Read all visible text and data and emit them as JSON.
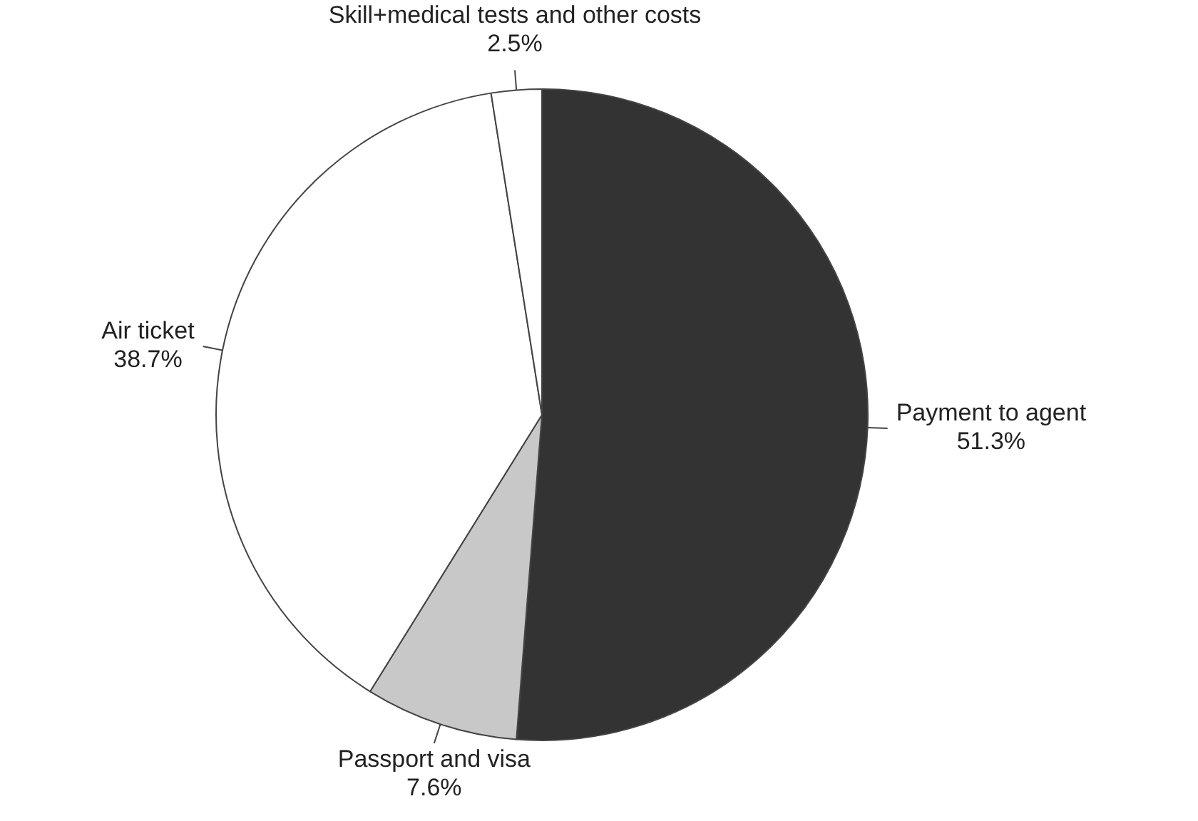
{
  "chart_data": {
    "type": "pie",
    "categories": [
      "Payment to agent",
      "Passport and visa",
      "Air ticket",
      "Skill+medical tests and other costs"
    ],
    "values": [
      51.3,
      7.6,
      38.7,
      2.5
    ],
    "colors": [
      "#333333",
      "#c8c8c8",
      "#ffffff",
      "#ffffff"
    ],
    "value_labels": [
      "51.3%",
      "7.6%",
      "38.7%",
      "2.5%"
    ],
    "legend": false
  }
}
